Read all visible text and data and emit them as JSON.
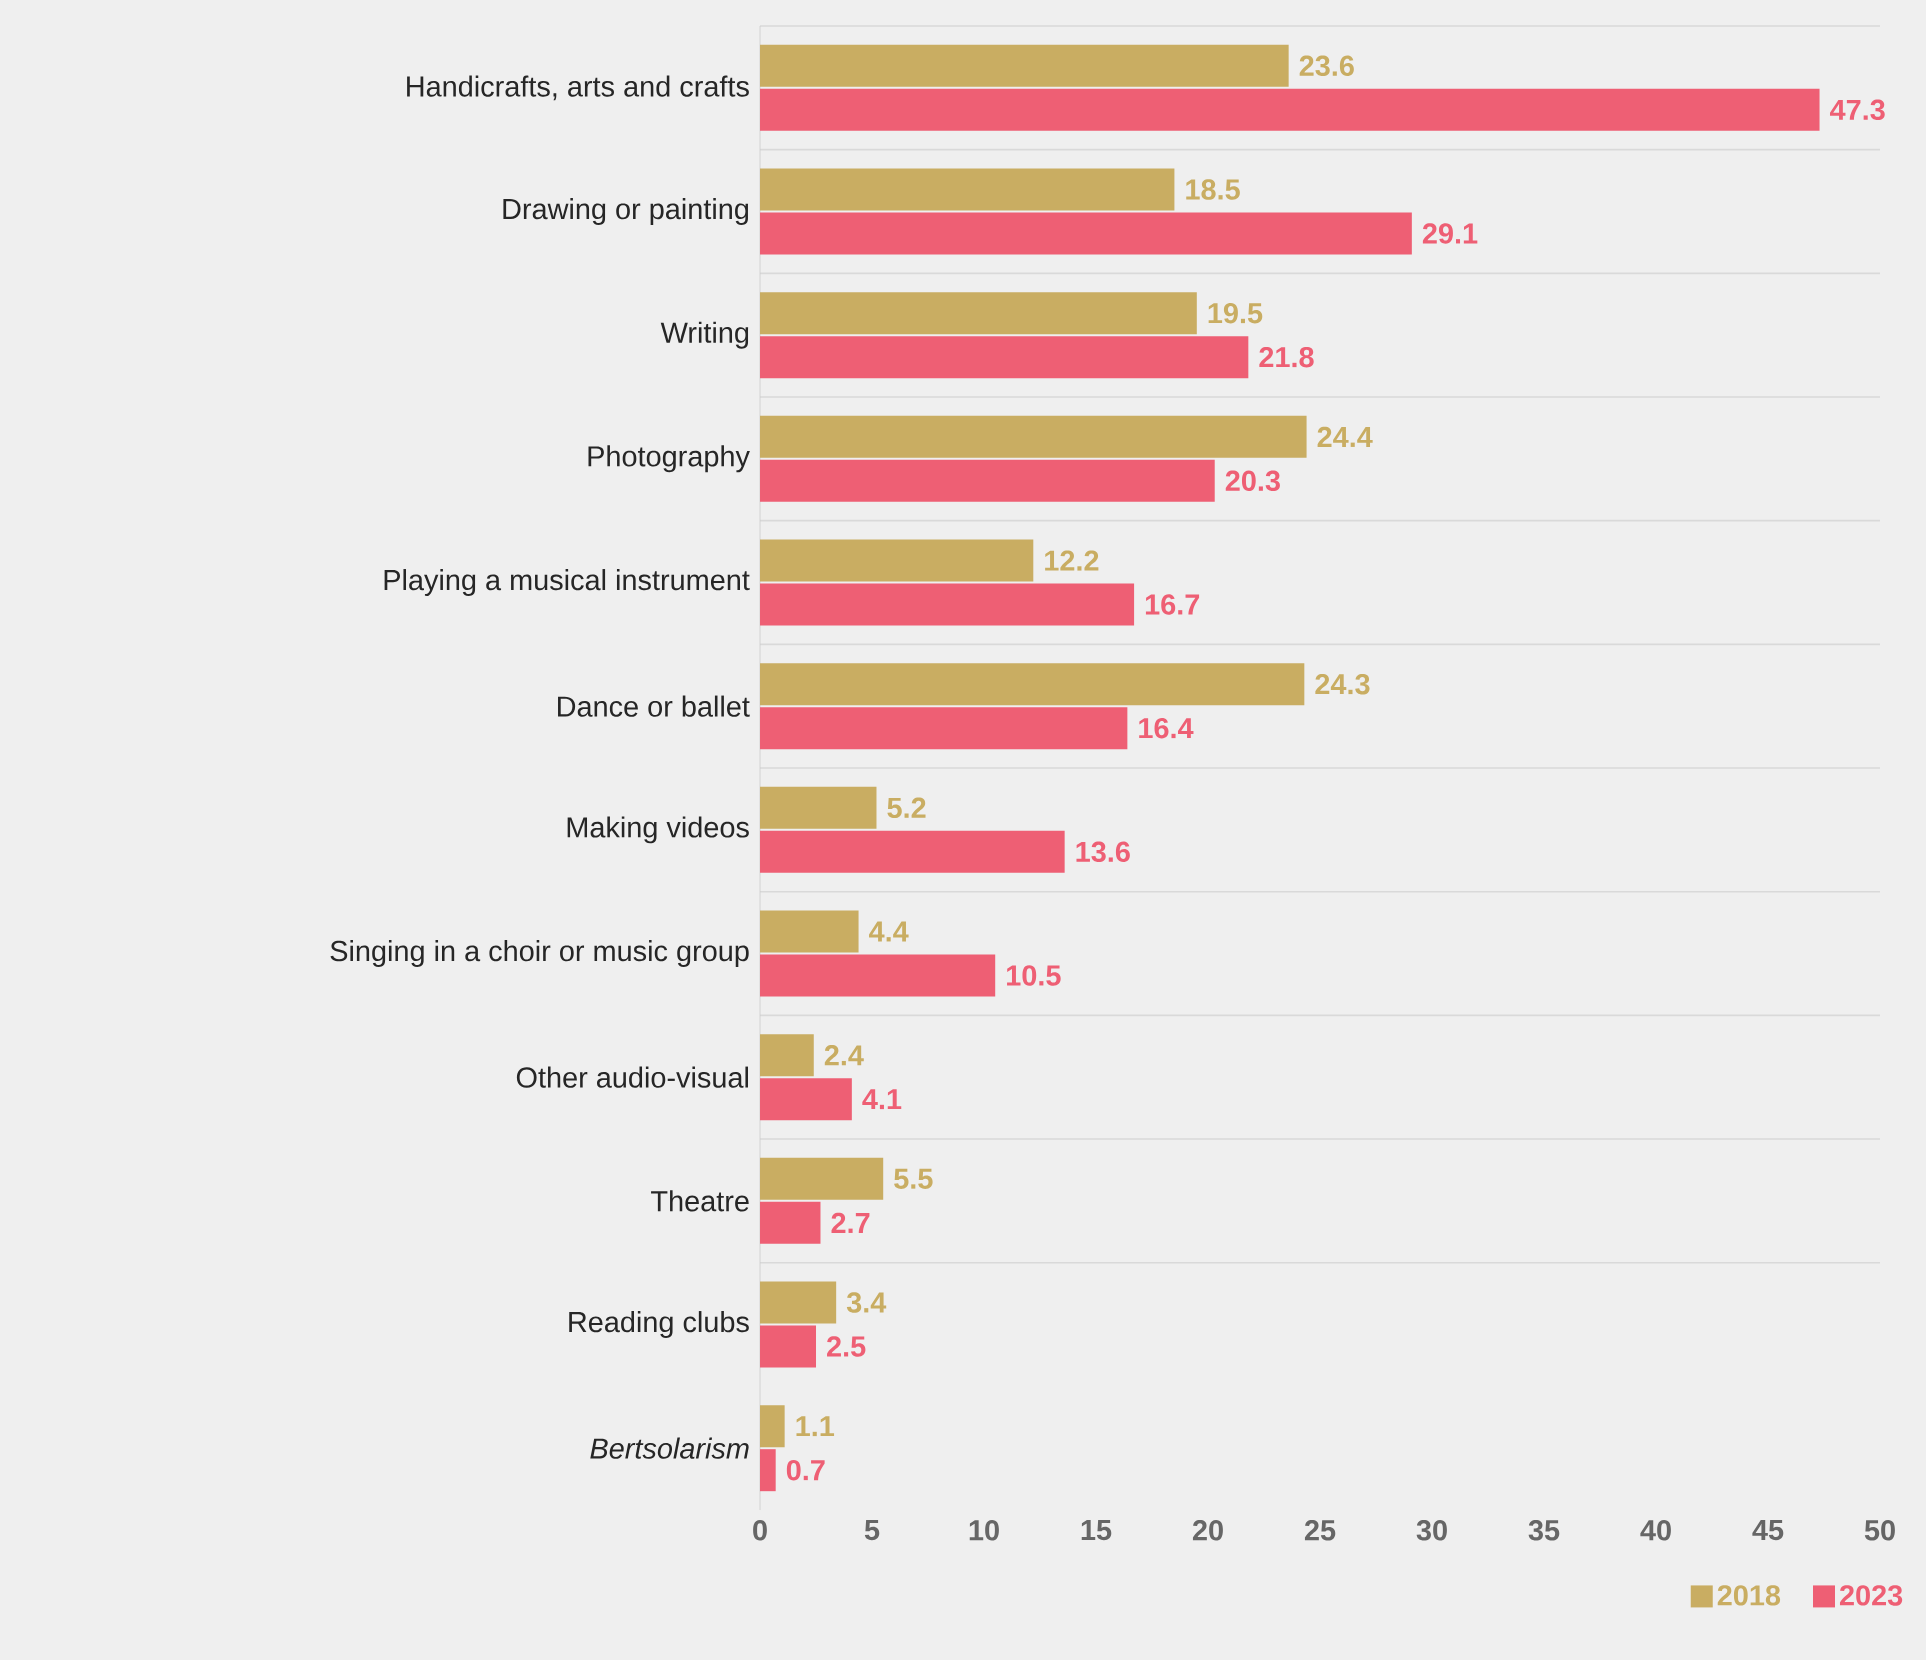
{
  "chart_data": {
    "type": "bar",
    "orientation": "horizontal",
    "categories": [
      "Handicrafts, arts and crafts",
      "Drawing or painting",
      "Writing",
      "Photography",
      "Playing a musical instrument",
      "Dance or ballet",
      "Making videos",
      "Singing in a choir or music group",
      "Other audio-visual",
      "Theatre",
      "Reading clubs",
      "*Bertsolarism*"
    ],
    "series": [
      {
        "name": "2018",
        "color": "#c9ad62",
        "values": [
          23.6,
          18.5,
          19.5,
          24.4,
          12.2,
          24.3,
          5.2,
          4.4,
          2.4,
          5.5,
          3.4,
          1.1
        ]
      },
      {
        "name": "2023",
        "color": "#ee5f74",
        "values": [
          47.3,
          29.1,
          21.8,
          20.3,
          16.7,
          16.4,
          13.6,
          10.5,
          4.1,
          2.7,
          2.5,
          0.7
        ]
      }
    ],
    "xlim": [
      0,
      50
    ],
    "xticks": [
      0,
      5,
      10,
      15,
      20,
      25,
      30,
      35,
      40,
      45,
      50
    ],
    "data_labels": true,
    "grid": "y",
    "legend": "bottom right"
  }
}
